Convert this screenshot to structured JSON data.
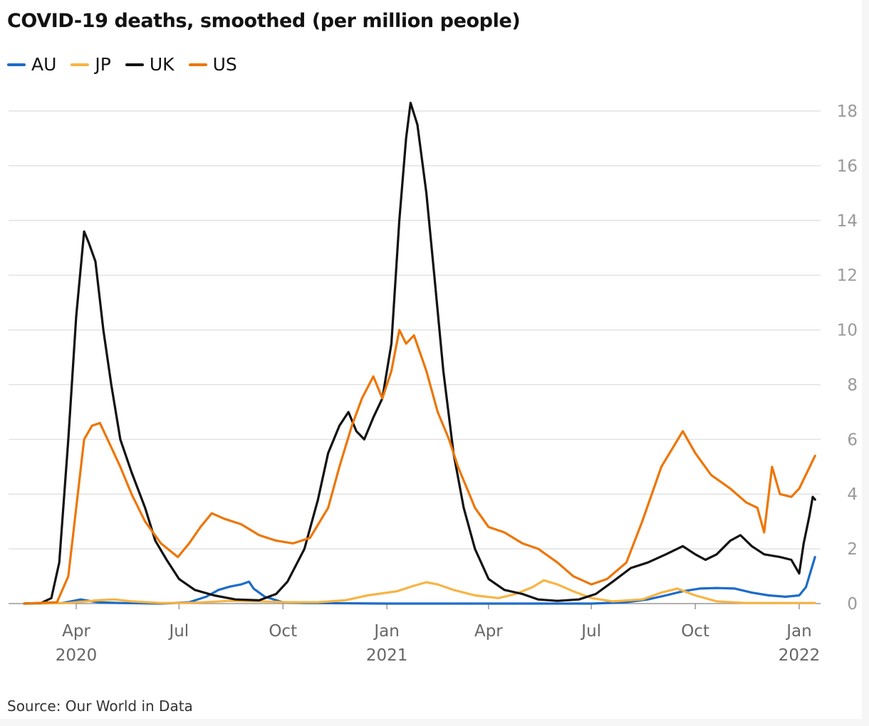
{
  "chart_data": {
    "type": "line",
    "title": "COVID-19 deaths, smoothed (per million people)",
    "source": "Source: Our World in Data",
    "legend_position": "top-left",
    "grid": true,
    "x_axis": {
      "type": "date",
      "range": [
        "2020-02-15",
        "2022-01-15"
      ],
      "ticks": [
        {
          "date": "2020-04-01",
          "label": "Apr",
          "year": "2020"
        },
        {
          "date": "2020-07-01",
          "label": "Jul",
          "year": ""
        },
        {
          "date": "2020-10-01",
          "label": "Oct",
          "year": ""
        },
        {
          "date": "2021-01-01",
          "label": "Jan",
          "year": "2021"
        },
        {
          "date": "2021-04-01",
          "label": "Apr",
          "year": ""
        },
        {
          "date": "2021-07-01",
          "label": "Jul",
          "year": ""
        },
        {
          "date": "2021-10-01",
          "label": "Oct",
          "year": ""
        },
        {
          "date": "2022-01-01",
          "label": "Jan",
          "year": "2022"
        }
      ]
    },
    "y_axis": {
      "range": [
        0,
        18
      ],
      "ticks": [
        0,
        2,
        4,
        6,
        8,
        10,
        12,
        14,
        16,
        18
      ],
      "position": "right"
    },
    "series": [
      {
        "name": "AU",
        "color": "#1c6cc9",
        "points": [
          [
            "2020-02-15",
            0
          ],
          [
            "2020-03-20",
            0.02
          ],
          [
            "2020-04-05",
            0.15
          ],
          [
            "2020-04-20",
            0.05
          ],
          [
            "2020-05-10",
            0.02
          ],
          [
            "2020-06-15",
            0
          ],
          [
            "2020-07-10",
            0.05
          ],
          [
            "2020-07-25",
            0.25
          ],
          [
            "2020-08-05",
            0.5
          ],
          [
            "2020-08-15",
            0.62
          ],
          [
            "2020-08-25",
            0.7
          ],
          [
            "2020-09-01",
            0.8
          ],
          [
            "2020-09-05",
            0.55
          ],
          [
            "2020-09-15",
            0.25
          ],
          [
            "2020-10-01",
            0.05
          ],
          [
            "2020-10-20",
            0.02
          ],
          [
            "2021-01-01",
            0
          ],
          [
            "2021-07-01",
            0
          ],
          [
            "2021-08-01",
            0.05
          ],
          [
            "2021-08-20",
            0.15
          ],
          [
            "2021-09-05",
            0.3
          ],
          [
            "2021-09-20",
            0.45
          ],
          [
            "2021-10-05",
            0.55
          ],
          [
            "2021-10-20",
            0.57
          ],
          [
            "2021-11-05",
            0.55
          ],
          [
            "2021-11-20",
            0.4
          ],
          [
            "2021-12-05",
            0.3
          ],
          [
            "2021-12-20",
            0.25
          ],
          [
            "2022-01-01",
            0.3
          ],
          [
            "2022-01-07",
            0.6
          ],
          [
            "2022-01-15",
            1.7
          ]
        ]
      },
      {
        "name": "JP",
        "color": "#f8b443",
        "points": [
          [
            "2020-02-15",
            0
          ],
          [
            "2020-03-25",
            0.02
          ],
          [
            "2020-04-20",
            0.12
          ],
          [
            "2020-05-05",
            0.15
          ],
          [
            "2020-05-20",
            0.08
          ],
          [
            "2020-06-15",
            0.02
          ],
          [
            "2020-07-15",
            0.03
          ],
          [
            "2020-08-15",
            0.1
          ],
          [
            "2020-09-10",
            0.08
          ],
          [
            "2020-10-05",
            0.05
          ],
          [
            "2020-11-01",
            0.05
          ],
          [
            "2020-11-25",
            0.12
          ],
          [
            "2020-12-15",
            0.3
          ],
          [
            "2021-01-10",
            0.45
          ],
          [
            "2021-01-25",
            0.65
          ],
          [
            "2021-02-05",
            0.78
          ],
          [
            "2021-02-15",
            0.7
          ],
          [
            "2021-03-01",
            0.5
          ],
          [
            "2021-03-20",
            0.3
          ],
          [
            "2021-04-10",
            0.2
          ],
          [
            "2021-04-25",
            0.35
          ],
          [
            "2021-05-10",
            0.6
          ],
          [
            "2021-05-20",
            0.85
          ],
          [
            "2021-06-01",
            0.7
          ],
          [
            "2021-06-15",
            0.45
          ],
          [
            "2021-07-01",
            0.2
          ],
          [
            "2021-07-20",
            0.08
          ],
          [
            "2021-08-15",
            0.15
          ],
          [
            "2021-09-01",
            0.4
          ],
          [
            "2021-09-15",
            0.55
          ],
          [
            "2021-10-01",
            0.3
          ],
          [
            "2021-10-20",
            0.08
          ],
          [
            "2021-11-15",
            0.02
          ],
          [
            "2022-01-15",
            0.02
          ]
        ]
      },
      {
        "name": "UK",
        "color": "#121212",
        "points": [
          [
            "2020-02-15",
            0
          ],
          [
            "2020-03-01",
            0.02
          ],
          [
            "2020-03-10",
            0.2
          ],
          [
            "2020-03-17",
            1.5
          ],
          [
            "2020-03-25",
            6
          ],
          [
            "2020-04-01",
            10.5
          ],
          [
            "2020-04-08",
            13.6
          ],
          [
            "2020-04-12",
            13.2
          ],
          [
            "2020-04-18",
            12.5
          ],
          [
            "2020-04-25",
            10
          ],
          [
            "2020-05-02",
            8
          ],
          [
            "2020-05-10",
            6
          ],
          [
            "2020-05-20",
            4.8
          ],
          [
            "2020-06-01",
            3.5
          ],
          [
            "2020-06-10",
            2.3
          ],
          [
            "2020-06-20",
            1.6
          ],
          [
            "2020-07-01",
            0.9
          ],
          [
            "2020-07-15",
            0.5
          ],
          [
            "2020-08-01",
            0.3
          ],
          [
            "2020-08-20",
            0.15
          ],
          [
            "2020-09-10",
            0.12
          ],
          [
            "2020-09-25",
            0.35
          ],
          [
            "2020-10-05",
            0.8
          ],
          [
            "2020-10-20",
            2
          ],
          [
            "2020-11-01",
            3.8
          ],
          [
            "2020-11-10",
            5.5
          ],
          [
            "2020-11-20",
            6.5
          ],
          [
            "2020-11-28",
            7
          ],
          [
            "2020-12-05",
            6.3
          ],
          [
            "2020-12-12",
            6
          ],
          [
            "2020-12-20",
            6.8
          ],
          [
            "2020-12-28",
            7.5
          ],
          [
            "2021-01-05",
            9.5
          ],
          [
            "2021-01-12",
            14
          ],
          [
            "2021-01-18",
            17
          ],
          [
            "2021-01-22",
            18.3
          ],
          [
            "2021-01-28",
            17.5
          ],
          [
            "2021-02-05",
            15
          ],
          [
            "2021-02-12",
            12
          ],
          [
            "2021-02-20",
            8.5
          ],
          [
            "2021-03-01",
            5.5
          ],
          [
            "2021-03-10",
            3.5
          ],
          [
            "2021-03-20",
            2
          ],
          [
            "2021-04-01",
            0.9
          ],
          [
            "2021-04-15",
            0.5
          ],
          [
            "2021-05-01",
            0.35
          ],
          [
            "2021-05-15",
            0.15
          ],
          [
            "2021-06-01",
            0.1
          ],
          [
            "2021-06-20",
            0.15
          ],
          [
            "2021-07-05",
            0.35
          ],
          [
            "2021-07-20",
            0.8
          ],
          [
            "2021-08-05",
            1.3
          ],
          [
            "2021-08-20",
            1.5
          ],
          [
            "2021-09-05",
            1.8
          ],
          [
            "2021-09-20",
            2.1
          ],
          [
            "2021-10-01",
            1.8
          ],
          [
            "2021-10-10",
            1.6
          ],
          [
            "2021-10-20",
            1.8
          ],
          [
            "2021-11-01",
            2.3
          ],
          [
            "2021-11-10",
            2.5
          ],
          [
            "2021-11-20",
            2.1
          ],
          [
            "2021-12-01",
            1.8
          ],
          [
            "2021-12-15",
            1.7
          ],
          [
            "2021-12-25",
            1.6
          ],
          [
            "2022-01-01",
            1.1
          ],
          [
            "2022-01-05",
            2.2
          ],
          [
            "2022-01-10",
            3.2
          ],
          [
            "2022-01-13",
            3.9
          ],
          [
            "2022-01-15",
            3.8
          ]
        ]
      },
      {
        "name": "US",
        "color": "#ed7606",
        "points": [
          [
            "2020-02-15",
            0
          ],
          [
            "2020-03-15",
            0.05
          ],
          [
            "2020-03-25",
            1
          ],
          [
            "2020-04-01",
            3.5
          ],
          [
            "2020-04-08",
            6
          ],
          [
            "2020-04-15",
            6.5
          ],
          [
            "2020-04-22",
            6.6
          ],
          [
            "2020-05-01",
            5.8
          ],
          [
            "2020-05-10",
            5
          ],
          [
            "2020-05-20",
            4
          ],
          [
            "2020-06-01",
            3
          ],
          [
            "2020-06-15",
            2.2
          ],
          [
            "2020-06-30",
            1.7
          ],
          [
            "2020-07-10",
            2.2
          ],
          [
            "2020-07-20",
            2.8
          ],
          [
            "2020-07-30",
            3.3
          ],
          [
            "2020-08-10",
            3.1
          ],
          [
            "2020-08-25",
            2.9
          ],
          [
            "2020-09-10",
            2.5
          ],
          [
            "2020-09-25",
            2.3
          ],
          [
            "2020-10-10",
            2.2
          ],
          [
            "2020-10-25",
            2.4
          ],
          [
            "2020-11-10",
            3.5
          ],
          [
            "2020-11-20",
            5
          ],
          [
            "2020-12-01",
            6.5
          ],
          [
            "2020-12-10",
            7.5
          ],
          [
            "2020-12-20",
            8.3
          ],
          [
            "2020-12-28",
            7.5
          ],
          [
            "2021-01-05",
            8.5
          ],
          [
            "2021-01-12",
            10
          ],
          [
            "2021-01-18",
            9.5
          ],
          [
            "2021-01-25",
            9.8
          ],
          [
            "2021-02-05",
            8.5
          ],
          [
            "2021-02-15",
            7
          ],
          [
            "2021-02-25",
            6
          ],
          [
            "2021-03-05",
            5
          ],
          [
            "2021-03-20",
            3.5
          ],
          [
            "2021-04-01",
            2.8
          ],
          [
            "2021-04-15",
            2.6
          ],
          [
            "2021-05-01",
            2.2
          ],
          [
            "2021-05-15",
            2
          ],
          [
            "2021-06-01",
            1.5
          ],
          [
            "2021-06-15",
            1
          ],
          [
            "2021-07-01",
            0.7
          ],
          [
            "2021-07-15",
            0.9
          ],
          [
            "2021-08-01",
            1.5
          ],
          [
            "2021-08-15",
            3
          ],
          [
            "2021-09-01",
            5
          ],
          [
            "2021-09-20",
            6.3
          ],
          [
            "2021-10-01",
            5.5
          ],
          [
            "2021-10-15",
            4.7
          ],
          [
            "2021-11-01",
            4.2
          ],
          [
            "2021-11-15",
            3.7
          ],
          [
            "2021-11-25",
            3.5
          ],
          [
            "2021-12-01",
            2.6
          ],
          [
            "2021-12-08",
            5
          ],
          [
            "2021-12-15",
            4
          ],
          [
            "2021-12-25",
            3.9
          ],
          [
            "2022-01-01",
            4.2
          ],
          [
            "2022-01-08",
            4.8
          ],
          [
            "2022-01-15",
            5.4
          ]
        ]
      }
    ]
  }
}
